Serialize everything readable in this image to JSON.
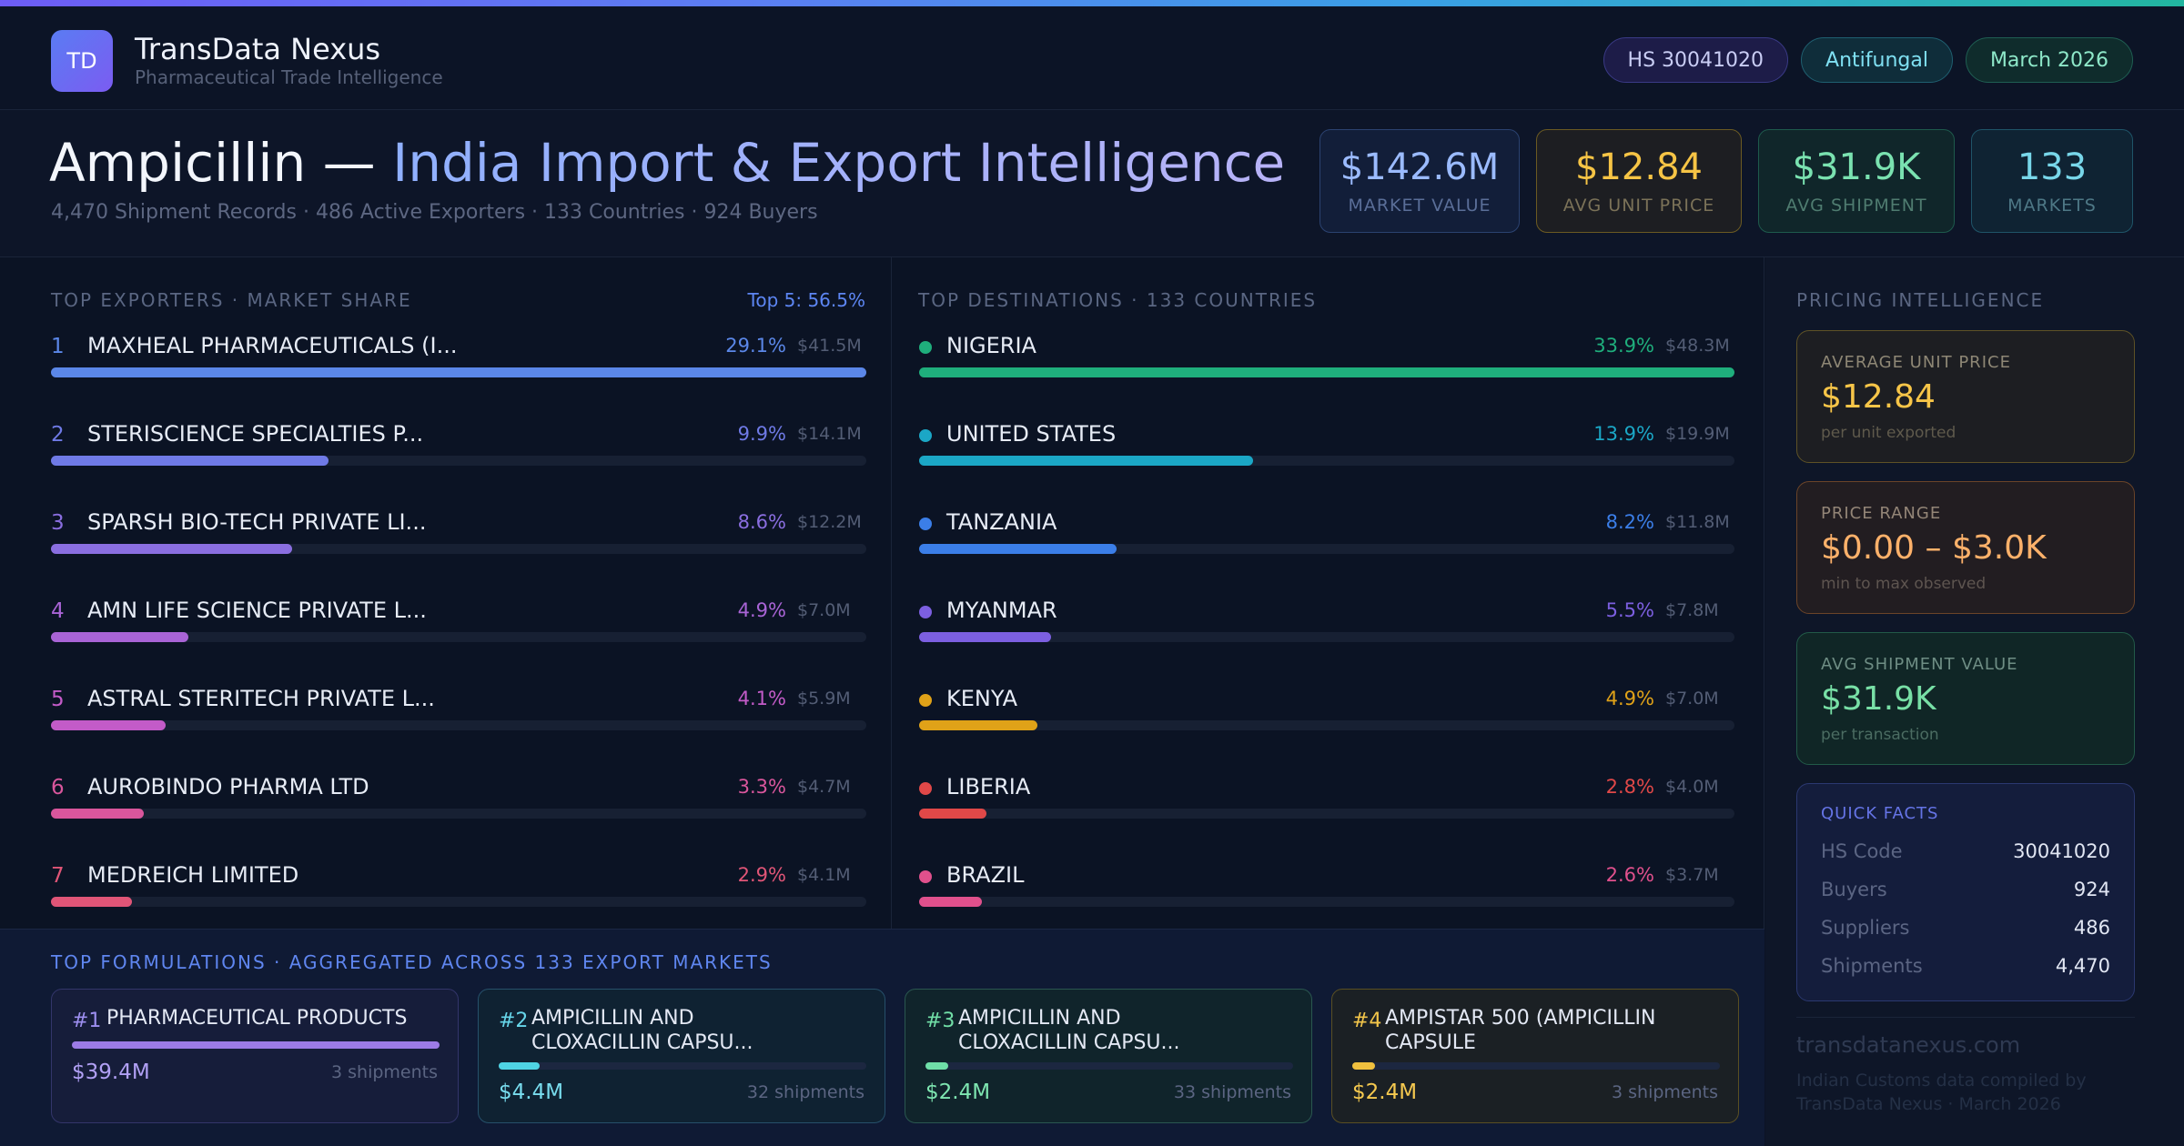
{
  "brand": {
    "initials": "TD",
    "name": "TransData Nexus",
    "tagline": "Pharmaceutical Trade Intelligence"
  },
  "pills": {
    "hs": "HS 30041020",
    "category": "Antifungal",
    "period": "March 2026"
  },
  "title": {
    "product": "Ampicillin —",
    "rest": "India Import & Export Intelligence",
    "subtitle": "4,470 Shipment Records · 486 Active Exporters · 133 Countries · 924 Buyers"
  },
  "kpis": [
    {
      "value": "$142.6M",
      "label": "MARKET VALUE"
    },
    {
      "value": "$12.84",
      "label": "AVG UNIT PRICE"
    },
    {
      "value": "$31.9K",
      "label": "AVG SHIPMENT"
    },
    {
      "value": "133",
      "label": "MARKETS"
    }
  ],
  "exporters": {
    "heading": "TOP EXPORTERS · MARKET SHARE",
    "note": "Top 5: 56.5%",
    "items": [
      {
        "rank": "1",
        "name": "MAXHEAL PHARMACEUTICALS (I...",
        "pct": "29.1%",
        "amount": "$41.5M",
        "share": 29.1,
        "color": "#5b87e8"
      },
      {
        "rank": "2",
        "name": "STERISCIENCE SPECIALTIES P...",
        "pct": "9.9%",
        "amount": "$14.1M",
        "share": 9.9,
        "color": "#6f7ae6"
      },
      {
        "rank": "3",
        "name": "SPARSH BIO-TECH PRIVATE LI...",
        "pct": "8.6%",
        "amount": "$12.2M",
        "share": 8.6,
        "color": "#8a6ee0"
      },
      {
        "rank": "4",
        "name": "AMN LIFE SCIENCE PRIVATE L...",
        "pct": "4.9%",
        "amount": "$7.0M",
        "share": 4.9,
        "color": "#a964d6"
      },
      {
        "rank": "5",
        "name": "ASTRAL STERITECH PRIVATE L...",
        "pct": "4.1%",
        "amount": "$5.9M",
        "share": 4.1,
        "color": "#c35bc8"
      },
      {
        "rank": "6",
        "name": "AUROBINDO PHARMA LTD",
        "pct": "3.3%",
        "amount": "$4.7M",
        "share": 3.3,
        "color": "#d9569c"
      },
      {
        "rank": "7",
        "name": "MEDREICH LIMITED",
        "pct": "2.9%",
        "amount": "$4.1M",
        "share": 2.9,
        "color": "#e05577"
      }
    ]
  },
  "destinations": {
    "heading": "TOP DESTINATIONS · 133 COUNTRIES",
    "items": [
      {
        "name": "NIGERIA",
        "pct": "33.9%",
        "amount": "$48.3M",
        "share": 33.9,
        "color": "#1fae7c"
      },
      {
        "name": "UNITED STATES",
        "pct": "13.9%",
        "amount": "$19.9M",
        "share": 13.9,
        "color": "#1ba7c6"
      },
      {
        "name": "TANZANIA",
        "pct": "8.2%",
        "amount": "$11.8M",
        "share": 8.2,
        "color": "#3b7ee8"
      },
      {
        "name": "MYANMAR",
        "pct": "5.5%",
        "amount": "$7.8M",
        "share": 5.5,
        "color": "#7c5fe0"
      },
      {
        "name": "KENYA",
        "pct": "4.9%",
        "amount": "$7.0M",
        "share": 4.9,
        "color": "#e0a218"
      },
      {
        "name": "LIBERIA",
        "pct": "2.8%",
        "amount": "$4.0M",
        "share": 2.8,
        "color": "#e04848"
      },
      {
        "name": "BRAZIL",
        "pct": "2.6%",
        "amount": "$3.7M",
        "share": 2.6,
        "color": "#e0508c"
      }
    ]
  },
  "formulations": {
    "heading": "TOP FORMULATIONS · AGGREGATED ACROSS 133 EXPORT MARKETS",
    "items": [
      {
        "num": "#1",
        "name": "PHARMACEUTICAL PRODUCTS",
        "value": "$39.4M",
        "shipments": "3 shipments",
        "fill": 1.0,
        "color": "#9c7be6",
        "num_color": "#9d8ff0",
        "val_color": "#b1a0f5"
      },
      {
        "num": "#2",
        "name": "AMPICILLIN AND CLOXACILLIN CAPSU...",
        "value": "$4.4M",
        "shipments": "32 shipments",
        "fill": 0.112,
        "color": "#4fd4e4",
        "num_color": "#67d6ea",
        "val_color": "#78dcee"
      },
      {
        "num": "#3",
        "name": "AMPICILLIN AND CLOXACILLIN CAPSU...",
        "value": "$2.4M",
        "shipments": "33 shipments",
        "fill": 0.061,
        "color": "#6fdfa8",
        "num_color": "#71dfa7",
        "val_color": "#7ee6b1"
      },
      {
        "num": "#4",
        "name": "AMPISTAR 500 (AMPICILLIN CAPSULE",
        "value": "$2.4M",
        "shipments": "3 shipments",
        "fill": 0.061,
        "color": "#f0c03e",
        "num_color": "#f2c54a",
        "val_color": "#f5c94f"
      }
    ]
  },
  "pricing": {
    "heading": "PRICING INTELLIGENCE",
    "avg_price": {
      "label": "AVERAGE UNIT PRICE",
      "value": "$12.84",
      "caption": "per unit exported"
    },
    "range": {
      "label": "PRICE RANGE",
      "value": "$0.00 – $3.0K",
      "caption": "min to max observed"
    },
    "avg_shipment": {
      "label": "AVG SHIPMENT VALUE",
      "value": "$31.9K",
      "caption": "per transaction"
    },
    "facts": {
      "label": "QUICK FACTS",
      "rows": [
        {
          "k": "HS Code",
          "v": "30041020"
        },
        {
          "k": "Buyers",
          "v": "924"
        },
        {
          "k": "Suppliers",
          "v": "486"
        },
        {
          "k": "Shipments",
          "v": "4,470"
        }
      ]
    },
    "site": "transdatanexus.com",
    "note": "Indian Customs data compiled by TransData Nexus · March 2026"
  }
}
